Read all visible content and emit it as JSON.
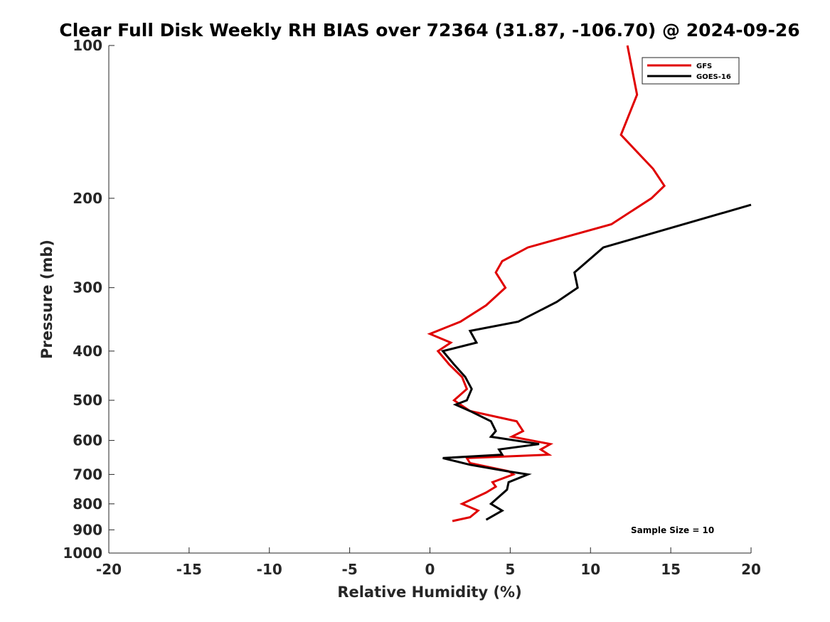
{
  "chart_data": {
    "type": "line",
    "title": "Clear Full Disk Weekly RH BIAS over 72364 (31.87, -106.70) @ 2024-09-26",
    "xlabel": "Relative Humidity (%)",
    "ylabel": "Pressure (mb)",
    "xlim": [
      -20,
      20
    ],
    "ylim": [
      100,
      1000
    ],
    "y_scale": "log",
    "y_reversed": true,
    "x_ticks": [
      "-20",
      "-15",
      "-10",
      "-5",
      "0",
      "5",
      "10",
      "15",
      "20"
    ],
    "y_ticks": [
      "100",
      "200",
      "300",
      "400",
      "500",
      "600",
      "700",
      "800",
      "900",
      "1000"
    ],
    "grid": false,
    "legend_position": "top-right",
    "annotation": "Sample Size = 10",
    "series": [
      {
        "name": "GFS",
        "color": "#e00000",
        "points": [
          [
            12.3,
            100
          ],
          [
            12.9,
            125
          ],
          [
            11.9,
            150
          ],
          [
            13.9,
            175
          ],
          [
            14.6,
            189
          ],
          [
            13.8,
            200
          ],
          [
            11.3,
            225
          ],
          [
            6.1,
            250
          ],
          [
            4.5,
            266
          ],
          [
            4.1,
            280
          ],
          [
            4.7,
            300
          ],
          [
            3.5,
            325
          ],
          [
            1.9,
            350
          ],
          [
            0.0,
            370
          ],
          [
            1.3,
            385
          ],
          [
            0.5,
            400
          ],
          [
            1.2,
            425
          ],
          [
            2.0,
            450
          ],
          [
            2.3,
            475
          ],
          [
            1.5,
            500
          ],
          [
            2.5,
            525
          ],
          [
            5.4,
            550
          ],
          [
            5.8,
            575
          ],
          [
            5.1,
            590
          ],
          [
            7.5,
            610
          ],
          [
            6.9,
            625
          ],
          [
            7.4,
            640
          ],
          [
            2.3,
            650
          ],
          [
            2.5,
            665
          ],
          [
            4.9,
            690
          ],
          [
            5.2,
            700
          ],
          [
            3.9,
            725
          ],
          [
            4.1,
            740
          ],
          [
            3.5,
            760
          ],
          [
            2.0,
            800
          ],
          [
            3.0,
            825
          ],
          [
            2.5,
            850
          ],
          [
            1.4,
            865
          ]
        ]
      },
      {
        "name": "GOES-16",
        "color": "#000000",
        "points": [
          [
            20.0,
            206
          ],
          [
            10.8,
            250
          ],
          [
            9.0,
            280
          ],
          [
            9.2,
            300
          ],
          [
            7.9,
            320
          ],
          [
            5.5,
            350
          ],
          [
            2.5,
            365
          ],
          [
            2.9,
            385
          ],
          [
            0.8,
            400
          ],
          [
            1.5,
            425
          ],
          [
            2.2,
            450
          ],
          [
            2.6,
            475
          ],
          [
            2.3,
            500
          ],
          [
            1.6,
            510
          ],
          [
            2.5,
            525
          ],
          [
            3.8,
            550
          ],
          [
            4.1,
            575
          ],
          [
            3.8,
            590
          ],
          [
            6.8,
            610
          ],
          [
            4.3,
            625
          ],
          [
            4.5,
            640
          ],
          [
            0.8,
            650
          ],
          [
            2.5,
            670
          ],
          [
            4.8,
            690
          ],
          [
            6.1,
            700
          ],
          [
            4.9,
            725
          ],
          [
            4.8,
            750
          ],
          [
            3.8,
            800
          ],
          [
            4.5,
            825
          ],
          [
            3.5,
            860
          ]
        ]
      }
    ]
  }
}
